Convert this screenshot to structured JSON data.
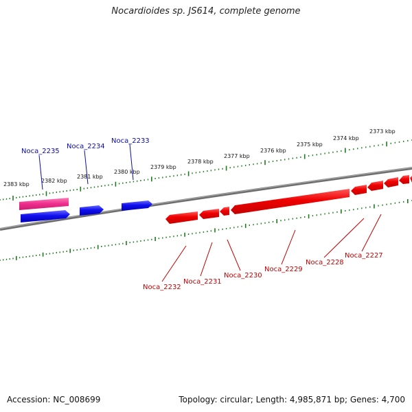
{
  "title": "Nocardioides sp. JS614, complete genome",
  "footer": {
    "accession": "Accession: NC_008699",
    "topology": "Topology: circular; Length: 4,985,871 bp; Genes: 4,700"
  },
  "colors": {
    "backbone": "#808080",
    "tick": "#1b7a1b",
    "forward_gene": "#1010ee",
    "reverse_gene": "#ee0000",
    "highlight_gene": "#ee2c8c",
    "forward_label": "#0a0aa8",
    "reverse_label": "#c00000"
  },
  "kbp_labels": [
    "2383 kbp",
    "2382 kbp",
    "2381 kbp",
    "2380 kbp",
    "2379 kbp",
    "2378 kbp",
    "2377 kbp",
    "2376 kbp",
    "2375 kbp",
    "2374 kbp",
    "2373 kbp"
  ],
  "genes_top": [
    "Noca_2235",
    "Noca_2234",
    "Noca_2233"
  ],
  "genes_bottom": [
    "Noca_2232",
    "Noca_2231",
    "Noca_2230",
    "Noca_2229",
    "Noca_2228",
    "Noca_2227"
  ]
}
